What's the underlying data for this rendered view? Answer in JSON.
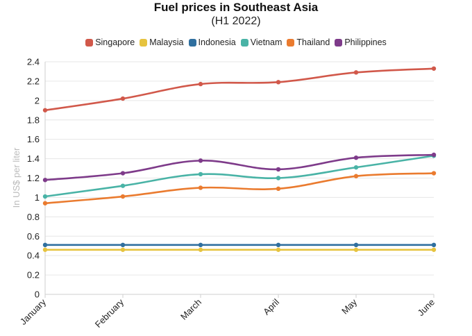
{
  "chart_data": {
    "type": "line",
    "title": "Fuel prices in Southeast Asia",
    "subtitle": "(H1 2022)",
    "xlabel": "",
    "ylabel": "In US$ per liter",
    "ylim": [
      0,
      2.4
    ],
    "yticks": [
      "0",
      "0.2",
      "0.4",
      "0.6",
      "0.8",
      "1",
      "1.2",
      "1.4",
      "1.6",
      "1.8",
      "2",
      "2.2",
      "2.4"
    ],
    "categories": [
      "January",
      "February",
      "March",
      "April",
      "May",
      "June"
    ],
    "grid": true,
    "legend_position": "top",
    "series": [
      {
        "name": "Singapore",
        "color": "#d1584a",
        "values": [
          1.9,
          2.02,
          2.17,
          2.19,
          2.29,
          2.33
        ]
      },
      {
        "name": "Malaysia",
        "color": "#e6c33f",
        "values": [
          0.46,
          0.46,
          0.46,
          0.46,
          0.46,
          0.46
        ]
      },
      {
        "name": "Indonesia",
        "color": "#2f6f9f",
        "values": [
          0.51,
          0.51,
          0.51,
          0.51,
          0.51,
          0.51
        ]
      },
      {
        "name": "Vietnam",
        "color": "#49b3a6",
        "values": [
          1.01,
          1.12,
          1.24,
          1.2,
          1.31,
          1.43
        ]
      },
      {
        "name": "Thailand",
        "color": "#ea7b2f",
        "values": [
          0.94,
          1.01,
          1.1,
          1.09,
          1.22,
          1.25
        ]
      },
      {
        "name": "Philippines",
        "color": "#7e3b8a",
        "values": [
          1.18,
          1.25,
          1.38,
          1.29,
          1.41,
          1.44
        ]
      }
    ]
  }
}
